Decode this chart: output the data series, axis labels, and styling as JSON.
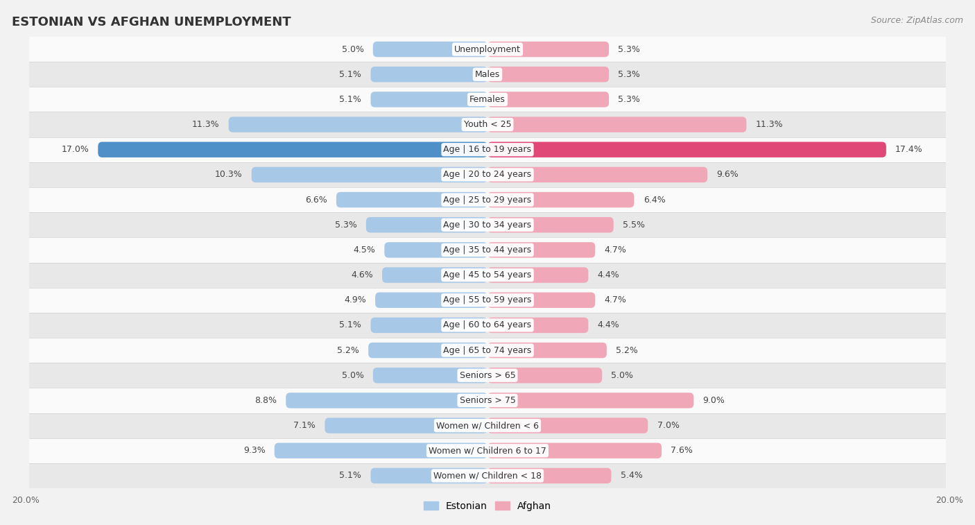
{
  "title": "ESTONIAN VS AFGHAN UNEMPLOYMENT",
  "source": "Source: ZipAtlas.com",
  "categories": [
    "Unemployment",
    "Males",
    "Females",
    "Youth < 25",
    "Age | 16 to 19 years",
    "Age | 20 to 24 years",
    "Age | 25 to 29 years",
    "Age | 30 to 34 years",
    "Age | 35 to 44 years",
    "Age | 45 to 54 years",
    "Age | 55 to 59 years",
    "Age | 60 to 64 years",
    "Age | 65 to 74 years",
    "Seniors > 65",
    "Seniors > 75",
    "Women w/ Children < 6",
    "Women w/ Children 6 to 17",
    "Women w/ Children < 18"
  ],
  "estonian": [
    5.0,
    5.1,
    5.1,
    11.3,
    17.0,
    10.3,
    6.6,
    5.3,
    4.5,
    4.6,
    4.9,
    5.1,
    5.2,
    5.0,
    8.8,
    7.1,
    9.3,
    5.1
  ],
  "afghan": [
    5.3,
    5.3,
    5.3,
    11.3,
    17.4,
    9.6,
    6.4,
    5.5,
    4.7,
    4.4,
    4.7,
    4.4,
    5.2,
    5.0,
    9.0,
    7.0,
    7.6,
    5.4
  ],
  "estonian_color": "#a8c8e8",
  "afghan_color": "#f0a8b8",
  "highlight_estonian_color": "#5090c8",
  "highlight_afghan_color": "#e04878",
  "bg_color": "#f2f2f2",
  "row_color_light": "#fafafa",
  "row_color_dark": "#e8e8e8",
  "separator_color": "#d0d0d0",
  "xlim": 20.0,
  "bar_height": 0.62,
  "value_fontsize": 9.0,
  "label_fontsize": 9.0,
  "title_fontsize": 13,
  "legend_estonian": "Estonian",
  "legend_afghan": "Afghan"
}
